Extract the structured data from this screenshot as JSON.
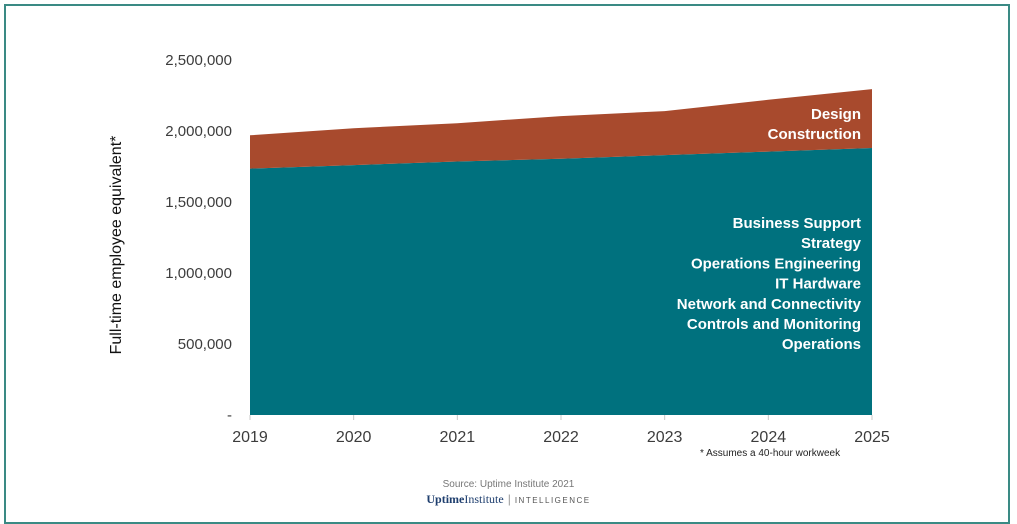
{
  "chart_data": {
    "type": "area",
    "stacked": true,
    "x": [
      "2019",
      "2020",
      "2021",
      "2022",
      "2023",
      "2024",
      "2025"
    ],
    "ylabel": "Full-time employee equivalent*",
    "ylim": [
      0,
      2500000
    ],
    "yticks": [
      "-",
      "500,000",
      "1,000,000",
      "1,500,000",
      "2,000,000",
      "2,500,000"
    ],
    "ytick_values": [
      0,
      500000,
      1000000,
      1500000,
      2000000,
      2500000
    ],
    "series": [
      {
        "name": "Operations / Controls and Monitoring / Network and Connectivity / IT Hardware / Operations Engineering / Strategy / Business Support",
        "color": "#00717e",
        "values": [
          1735000,
          1760000,
          1785000,
          1805000,
          1830000,
          1855000,
          1880000
        ],
        "labels": [
          "Business Support",
          "Strategy",
          "Operations Engineering",
          "IT Hardware",
          "Network and Connectivity",
          "Controls and Monitoring",
          "Operations"
        ]
      },
      {
        "name": "Design / Construction",
        "color": "#a84a2d",
        "values": [
          235000,
          260000,
          270000,
          300000,
          310000,
          365000,
          415000
        ],
        "labels": [
          "Design",
          "Construction"
        ]
      }
    ],
    "grid": false
  },
  "footnote": "* Assumes a 40-hour workweek",
  "source": "Source: Uptime Institute 2021",
  "brand": {
    "uptime": "Uptime",
    "institute": "Institute",
    "intelligence": "INTELLIGENCE"
  },
  "colors": {
    "border": "#3a8a84",
    "teal": "#00717e",
    "rust": "#a84a2d"
  }
}
